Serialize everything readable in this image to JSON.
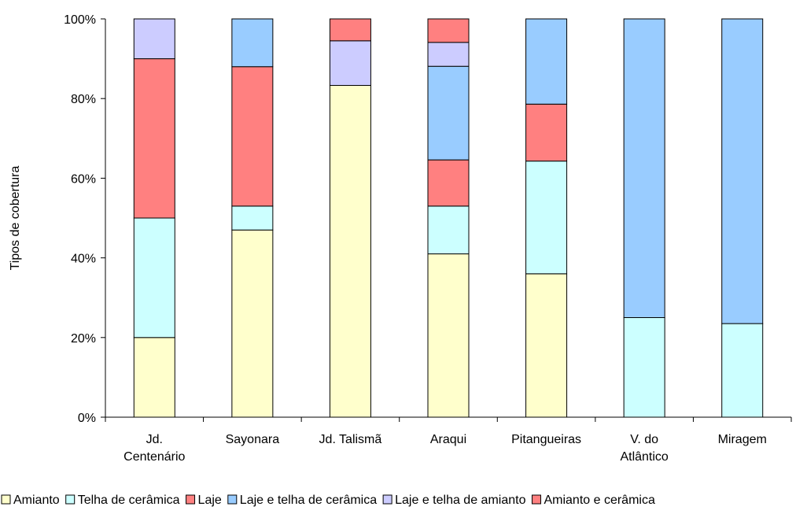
{
  "chart_data": {
    "type": "bar",
    "stacked": true,
    "percent": true,
    "title": "",
    "xlabel": "",
    "ylabel": "Tipos de cobertura",
    "ylim": [
      0,
      100
    ],
    "yticks": [
      "0%",
      "20%",
      "40%",
      "60%",
      "80%",
      "100%"
    ],
    "grid": false,
    "legend_position": "bottom",
    "categories": [
      [
        "Jd.",
        "Centenário"
      ],
      [
        "Sayonara"
      ],
      [
        "Jd. Talismã"
      ],
      [
        "Araqui"
      ],
      [
        "Pitangueiras"
      ],
      [
        "V. do",
        "Atlântico"
      ],
      [
        "Miragem"
      ]
    ],
    "series": [
      {
        "name": "Amianto",
        "color": "#FFFFCC",
        "values": [
          20,
          47,
          83.3,
          41,
          36,
          0,
          0
        ]
      },
      {
        "name": "Telha de cerâmica",
        "color": "#CCFFFF",
        "values": [
          30,
          6,
          0,
          12,
          28.3,
          25,
          23.5
        ]
      },
      {
        "name": "Laje",
        "color": "#FF8080",
        "values": [
          40,
          35,
          0,
          11.6,
          14.3,
          0,
          0
        ]
      },
      {
        "name": "Laje e telha de cerâmica",
        "color": "#99CCFF",
        "values": [
          0,
          12,
          0,
          23.5,
          21.4,
          75,
          76.5
        ]
      },
      {
        "name": "Laje e telha de amianto",
        "color": "#CCCCFF",
        "values": [
          10,
          0,
          11.2,
          6,
          0,
          0,
          0
        ]
      },
      {
        "name": "Amianto e cerâmica",
        "color": "#FF8080",
        "values": [
          0,
          0,
          5.5,
          5.9,
          0,
          0,
          0
        ]
      }
    ]
  }
}
